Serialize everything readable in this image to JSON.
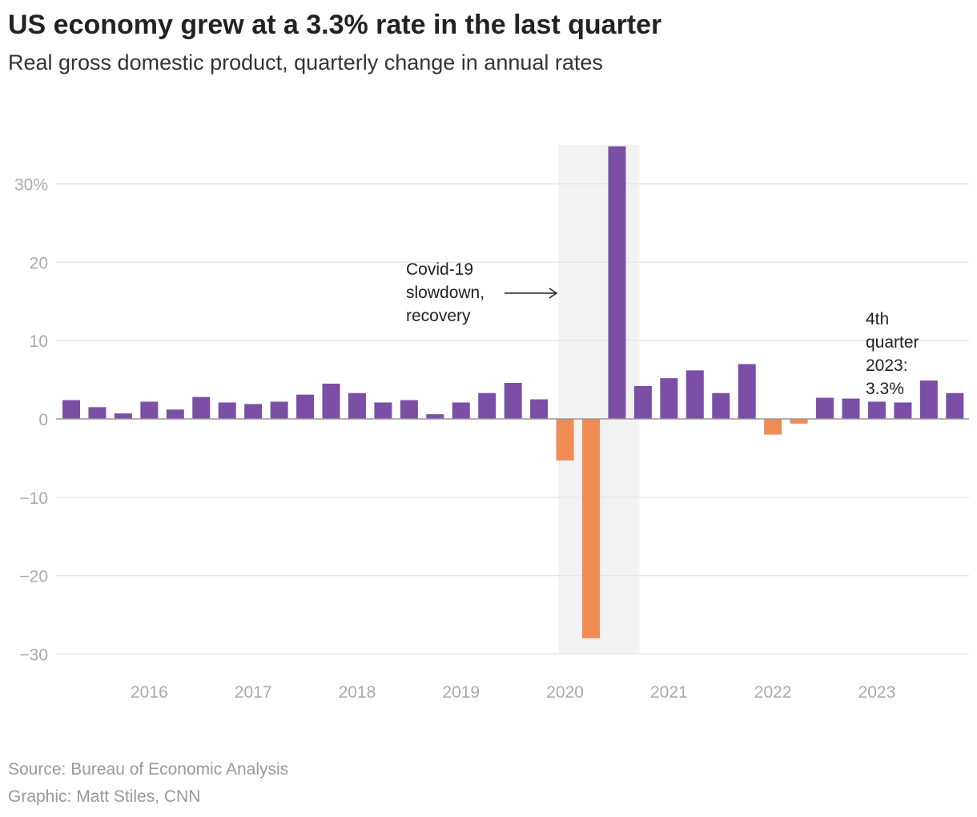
{
  "chart_data": {
    "type": "bar",
    "title": "US economy grew at a 3.3% rate in the last quarter",
    "subtitle": "Real gross domestic product, quarterly change in annual rates",
    "categories": [
      "2015 Q2",
      "2015 Q3",
      "2015 Q4",
      "2016 Q1",
      "2016 Q2",
      "2016 Q3",
      "2016 Q4",
      "2017 Q1",
      "2017 Q2",
      "2017 Q3",
      "2017 Q4",
      "2018 Q1",
      "2018 Q2",
      "2018 Q3",
      "2018 Q4",
      "2019 Q1",
      "2019 Q2",
      "2019 Q3",
      "2019 Q4",
      "2020 Q1",
      "2020 Q2",
      "2020 Q3",
      "2020 Q4",
      "2021 Q1",
      "2021 Q2",
      "2021 Q3",
      "2021 Q4",
      "2022 Q1",
      "2022 Q2",
      "2022 Q3",
      "2022 Q4",
      "2023 Q1",
      "2023 Q2",
      "2023 Q3",
      "2023 Q4"
    ],
    "values": [
      2.4,
      1.5,
      0.7,
      2.2,
      1.2,
      2.8,
      2.1,
      1.9,
      2.2,
      3.1,
      4.5,
      3.3,
      2.1,
      2.4,
      0.6,
      2.1,
      3.3,
      4.6,
      2.5,
      -5.3,
      -28.0,
      34.8,
      4.2,
      5.2,
      6.2,
      3.3,
      7.0,
      -2.0,
      -0.6,
      2.7,
      2.6,
      2.2,
      2.1,
      4.9,
      3.3
    ],
    "ylim": [
      -30,
      35
    ],
    "yticks": [
      {
        "v": 30,
        "label": "30%"
      },
      {
        "v": 20,
        "label": "20"
      },
      {
        "v": 10,
        "label": "10"
      },
      {
        "v": 0,
        "label": "0"
      },
      {
        "v": -10,
        "label": "−10"
      },
      {
        "v": -20,
        "label": "−20"
      },
      {
        "v": -30,
        "label": "−30"
      }
    ],
    "xtick_labels": [
      "2016",
      "2017",
      "2018",
      "2019",
      "2020",
      "2021",
      "2022",
      "2023"
    ],
    "grid": true,
    "colors": {
      "positive": "#7b4fa6",
      "negative": "#f08c55",
      "shade": "#f2f2f2"
    },
    "annotations": {
      "covid": [
        "Covid-19",
        "slowdown,",
        "recovery"
      ],
      "last": [
        "4th",
        "quarter",
        "2023:",
        "3.3%"
      ]
    }
  },
  "footer": {
    "source": "Source: Bureau of Economic Analysis",
    "credit": "Graphic: Matt Stiles, CNN"
  }
}
